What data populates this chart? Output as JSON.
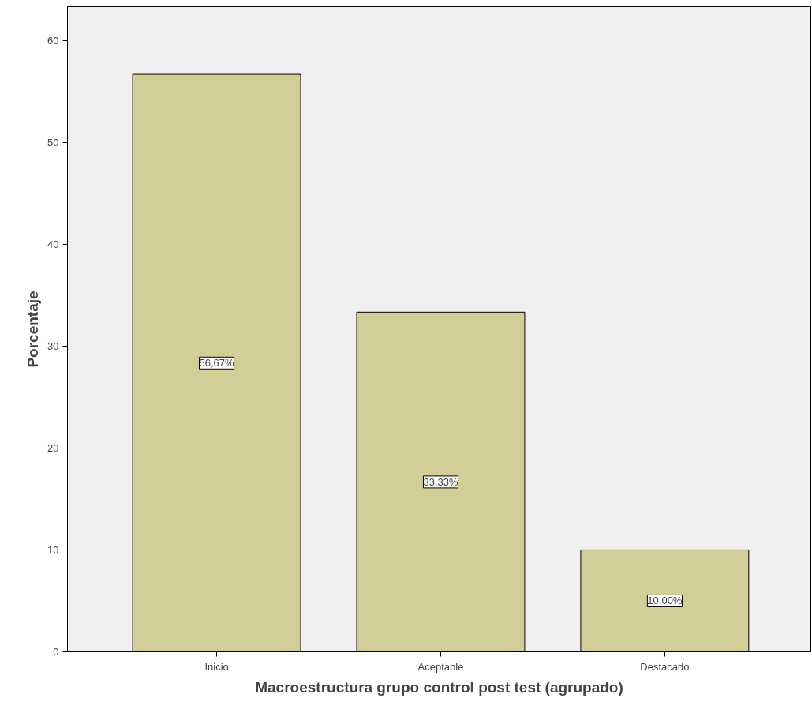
{
  "chart_data": {
    "type": "bar",
    "xlabel": "Macroestructura grupo control post test (agrupado)",
    "ylabel": "Porcentaje",
    "categories": [
      "Inicio",
      "Aceptable",
      "Destacado"
    ],
    "values": [
      56.67,
      33.33,
      10.0
    ],
    "color": "#d3ce97",
    "value_labels": [
      "56,67%",
      "33,33%",
      "10,00%"
    ],
    "ylim": [
      0,
      63.3
    ],
    "yticks": [
      0,
      10,
      20,
      30,
      40,
      50,
      60
    ],
    "grid": false
  }
}
